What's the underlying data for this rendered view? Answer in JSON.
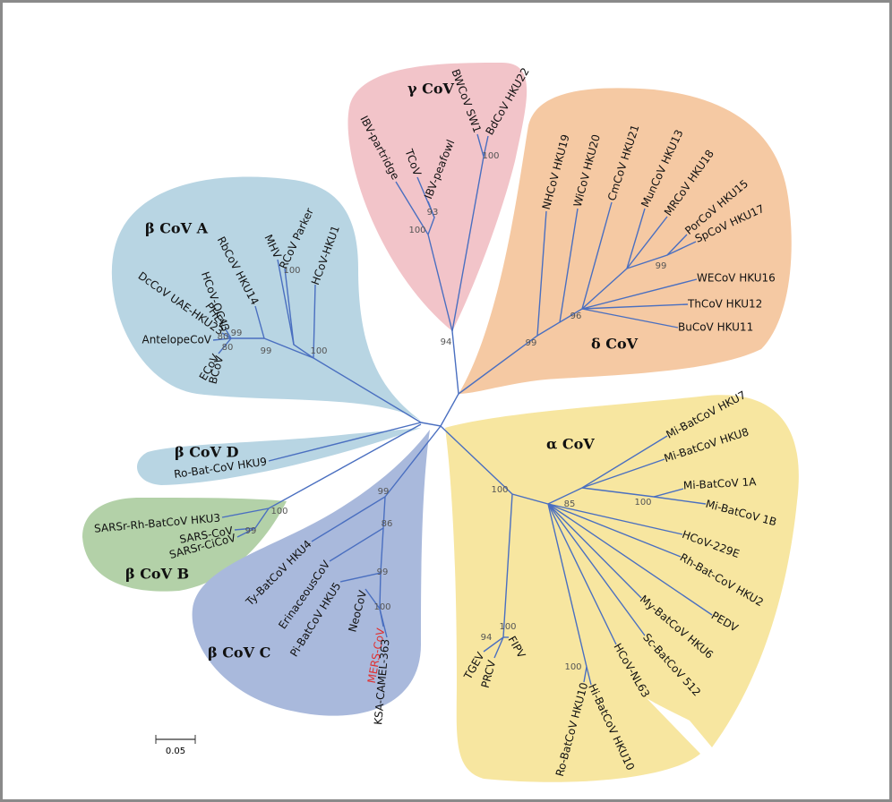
{
  "clades": [
    {
      "label": "γ CoV",
      "leaves": [
        "IBV-partridge",
        "TCoV",
        "IBV-peafowl",
        "BWCoV SW1",
        "BdCoV HKU22"
      ],
      "bootstrap": [
        93,
        100,
        100,
        94
      ]
    },
    {
      "label": "δ CoV",
      "leaves": [
        "NHCoV HKU19",
        "WiCoV HKU20",
        "CmCoV HKU21",
        "MunCoV HKU13",
        "MRCoV HKU18",
        "PorCoV HKU15",
        "SpCoV HKU17",
        "WECoV HKU16",
        "ThCoV HKU12",
        "BuCoV HKU11"
      ],
      "bootstrap": [
        99,
        96,
        99
      ]
    },
    {
      "label": "β CoV A",
      "leaves": [
        "DcCoV UAE-HKU23",
        "PHEV",
        "HCoV-OC43",
        "RbCoV HKU14",
        "MHV",
        "RCoV Parker",
        "HCoV-HKU1",
        "AntelopeCoV",
        "ECoV",
        "BCoV"
      ],
      "bootstrap": [
        99,
        80,
        80,
        99,
        100,
        100
      ]
    },
    {
      "label": "β CoV D",
      "leaves": [
        "Ro-Bat-CoV HKU9"
      ],
      "bootstrap": []
    },
    {
      "label": "β CoV B",
      "leaves": [
        "SARSr-Rh-BatCoV HKU3",
        "SARS-CoV",
        "SARSr-CiCoV"
      ],
      "bootstrap": [
        100,
        99
      ]
    },
    {
      "label": "β CoV C",
      "leaves": [
        "Ty-BatCoV HKU4",
        "ErinaceousCoV",
        "Pi-BatCoV HKU5",
        "NeoCoV",
        "MERS-CoV",
        "KSA-CAMEL-363"
      ],
      "bootstrap": [
        99,
        86,
        99,
        100
      ]
    },
    {
      "label": "α CoV",
      "leaves": [
        "Mi-BatCoV HKU7",
        "Mi-BatCoV HKU8",
        "Mi-BatCoV 1A",
        "Mi-BatCoV 1B",
        "HCoV-229E",
        "Rh-Bat-CoV HKU2",
        "PEDV",
        "My-BatCoV HKU6",
        "Sc-BatCoV 512",
        "HCoV-NL63",
        "Hi-BatCoV HKU10",
        "Ro-BatCoV HKU10",
        "TGEV",
        "PRCV",
        "FIPV"
      ],
      "bootstrap": [
        100,
        85,
        100,
        94,
        100,
        100
      ]
    }
  ],
  "scale_bar": "0.05"
}
